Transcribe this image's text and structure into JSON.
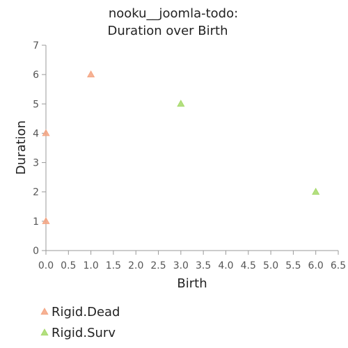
{
  "chart_data": {
    "type": "scatter",
    "title": [
      "nooku__joomla-todo:",
      "Duration over Birth"
    ],
    "xlabel": "Birth",
    "ylabel": "Duration",
    "xlim": [
      0,
      6.5
    ],
    "ylim": [
      0,
      7
    ],
    "x_ticks": [
      "0.0",
      "0.5",
      "1.0",
      "1.5",
      "2.0",
      "2.5",
      "3.0",
      "3.5",
      "4.0",
      "4.5",
      "5.0",
      "5.5",
      "6.0",
      "6.5"
    ],
    "y_ticks": [
      "0",
      "1",
      "2",
      "3",
      "4",
      "5",
      "6",
      "7"
    ],
    "grid": false,
    "legend_position": "bottom-left",
    "marker": "triangle",
    "series": [
      {
        "name": "Rigid.Dead",
        "color": "#f4a582",
        "points": [
          {
            "x": 0,
            "y": 1
          },
          {
            "x": 0,
            "y": 4
          },
          {
            "x": 1,
            "y": 6
          }
        ]
      },
      {
        "name": "Rigid.Surv",
        "color": "#a6d96a",
        "points": [
          {
            "x": 3,
            "y": 5
          },
          {
            "x": 6,
            "y": 2
          }
        ]
      }
    ]
  }
}
